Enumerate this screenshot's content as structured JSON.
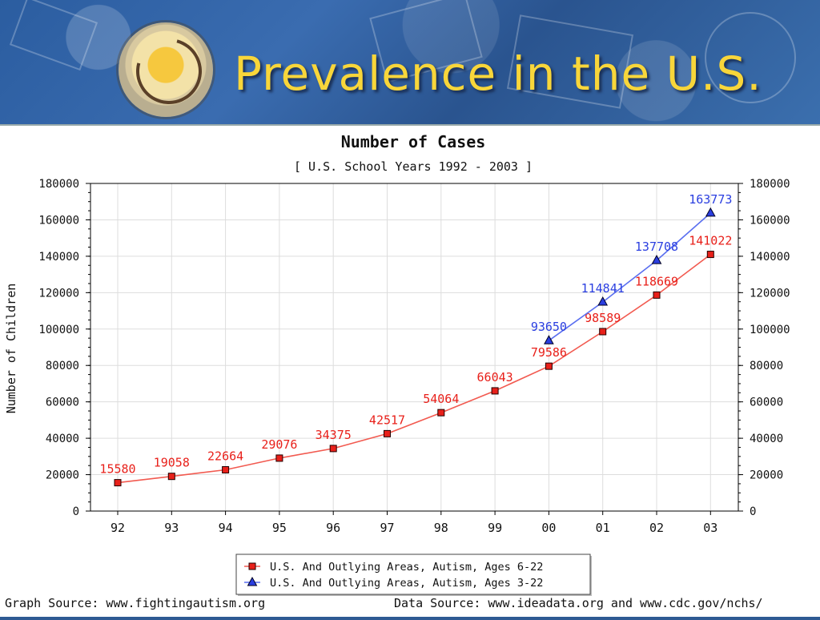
{
  "slide": {
    "title": "Prevalence in the U.S."
  },
  "colors": {
    "series1": "#e8201a",
    "series2": "#2a3ee0",
    "title_yellow": "#f8d63a"
  },
  "footer": {
    "graph_source": "Graph Source: www.fightingautism.org",
    "data_source": "Data Source: www.ideadata.org and www.cdc.gov/nchs/"
  },
  "chart_data": {
    "type": "line",
    "title": "Number of Cases",
    "subtitle": "[ U.S. School Years 1992 - 2003 ]",
    "ylabel": "Number of Children",
    "xlabel": "",
    "categories": [
      "92",
      "93",
      "94",
      "95",
      "96",
      "97",
      "98",
      "99",
      "00",
      "01",
      "02",
      "03"
    ],
    "ylim": [
      0,
      180000
    ],
    "yticks": [
      0,
      20000,
      40000,
      60000,
      80000,
      100000,
      120000,
      140000,
      160000,
      180000
    ],
    "grid": true,
    "legend_position": "bottom-center",
    "series": [
      {
        "name": "U.S. And Outlying Areas, Autism, Ages 6-22",
        "marker": "square",
        "color": "#e8201a",
        "values": [
          15580,
          19058,
          22664,
          29076,
          34375,
          42517,
          54064,
          66043,
          79586,
          98589,
          118669,
          141022
        ]
      },
      {
        "name": "U.S. And Outlying Areas, Autism, Ages 3-22",
        "marker": "triangle",
        "color": "#2a3ee0",
        "values": [
          null,
          null,
          null,
          null,
          null,
          null,
          null,
          null,
          93650,
          114841,
          137708,
          163773
        ]
      }
    ]
  }
}
